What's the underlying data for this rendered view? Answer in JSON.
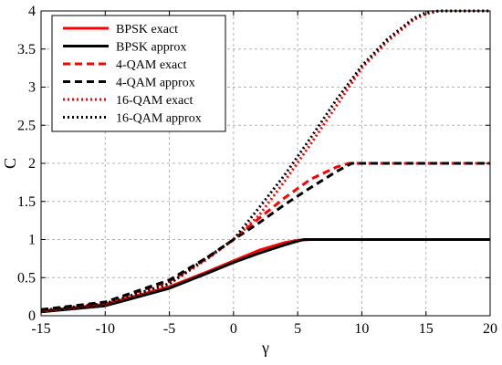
{
  "chart_data": {
    "type": "line",
    "xlabel": "γ",
    "ylabel": "C",
    "xlim": [
      -15,
      20
    ],
    "ylim": [
      0,
      4
    ],
    "xticks": [
      "-15",
      "-10",
      "-5",
      "0",
      "5",
      "10",
      "15",
      "20"
    ],
    "yticks": [
      "0",
      "0.5",
      "1",
      "1.5",
      "2",
      "2.5",
      "3",
      "3.5",
      "4"
    ],
    "grid": true,
    "legend_position": "top-left",
    "series": [
      {
        "name": "BPSK exact",
        "color": "#ff0000",
        "style": "solid",
        "x": [
          -15,
          -10,
          -5,
          -2,
          0,
          2,
          4,
          5,
          6,
          8,
          10,
          12,
          15,
          18,
          20
        ],
        "y": [
          0.06,
          0.15,
          0.38,
          0.58,
          0.72,
          0.86,
          0.96,
          0.99,
          1.0,
          1.0,
          1.0,
          1.0,
          1.0,
          1.0,
          1.0
        ]
      },
      {
        "name": "BPSK approx",
        "color": "#000000",
        "style": "solid",
        "x": [
          -15,
          -10,
          -5,
          -2,
          0,
          2,
          4,
          5,
          5.5,
          8,
          10,
          12,
          15,
          18,
          20
        ],
        "y": [
          0.05,
          0.13,
          0.36,
          0.56,
          0.7,
          0.82,
          0.93,
          0.98,
          1.0,
          1.0,
          1.0,
          1.0,
          1.0,
          1.0,
          1.0
        ]
      },
      {
        "name": "4-QAM exact",
        "color": "#ff0000",
        "style": "dashed",
        "x": [
          -15,
          -10,
          -5,
          -2,
          0,
          2,
          4,
          6,
          8,
          9,
          10,
          12,
          15,
          18,
          20
        ],
        "y": [
          0.07,
          0.18,
          0.45,
          0.76,
          1.0,
          1.28,
          1.55,
          1.79,
          1.95,
          2.0,
          2.0,
          2.0,
          2.0,
          2.0,
          2.0
        ]
      },
      {
        "name": "4-QAM approx",
        "color": "#000000",
        "style": "dashed",
        "x": [
          -15,
          -10,
          -5,
          -2,
          0,
          2,
          4,
          6,
          8,
          9.2,
          10,
          12,
          15,
          18,
          20
        ],
        "y": [
          0.08,
          0.18,
          0.47,
          0.77,
          1.0,
          1.22,
          1.46,
          1.68,
          1.89,
          2.0,
          2.0,
          2.0,
          2.0,
          2.0,
          2.0
        ]
      },
      {
        "name": "16-QAM exact",
        "color": "#ff0000",
        "style": "dotted",
        "x": [
          -15,
          -10,
          -5,
          -2,
          0,
          2,
          4,
          6,
          8,
          10,
          12,
          14,
          15,
          16,
          18,
          20
        ],
        "y": [
          0.06,
          0.15,
          0.42,
          0.75,
          1.0,
          1.32,
          1.77,
          2.25,
          2.75,
          3.25,
          3.6,
          3.88,
          3.96,
          4.0,
          4.0,
          4.0
        ]
      },
      {
        "name": "16-QAM approx",
        "color": "#000000",
        "style": "dotted",
        "x": [
          -15,
          -10,
          -5,
          -2,
          0,
          2,
          4,
          6,
          8,
          10,
          12,
          14,
          15,
          16,
          18,
          20
        ],
        "y": [
          0.07,
          0.16,
          0.42,
          0.77,
          1.0,
          1.42,
          1.85,
          2.33,
          2.83,
          3.28,
          3.63,
          3.9,
          3.98,
          4.0,
          4.0,
          4.0
        ]
      }
    ]
  }
}
